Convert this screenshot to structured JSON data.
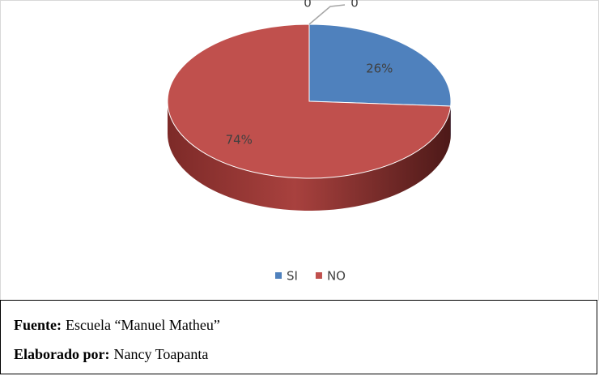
{
  "chart_data": {
    "type": "pie3d",
    "categories": [
      "SI",
      "NO",
      null,
      null
    ],
    "values": [
      26,
      74,
      0,
      0
    ],
    "value_labels": [
      "26%",
      "74%",
      "0",
      "0"
    ],
    "colors": [
      "#4f81bd",
      "#c0504d",
      "#9bbb59",
      "#8064a2"
    ],
    "legend": "bottom"
  },
  "notes": [
    {
      "label": "Fuente:",
      "text": "Escuela “Manuel Matheu”"
    },
    {
      "label": "Elaborado por:",
      "text": "Nancy Toapanta"
    }
  ]
}
